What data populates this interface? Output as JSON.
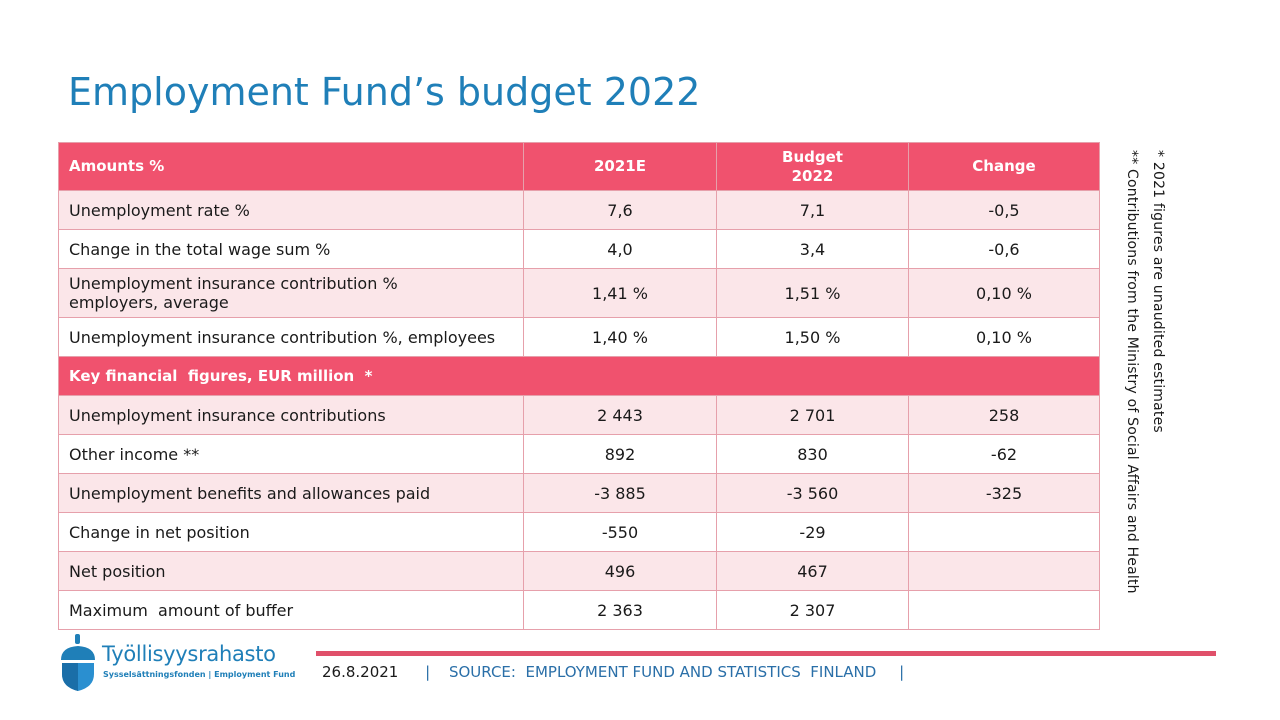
{
  "title": "Employment Fund’s budget 2022",
  "table": {
    "header": {
      "label": "Amounts %",
      "col1": "2021E",
      "col2_line1": "Budget",
      "col2_line2": "2022",
      "col3": "Change"
    },
    "rows_amounts": [
      {
        "label": "Unemployment rate %",
        "v2021": "7,6",
        "budget": "7,1",
        "change": "-0,5"
      },
      {
        "label": "Change in the total wage sum %",
        "v2021": "4,0",
        "budget": "3,4",
        "change": "-0,6"
      },
      {
        "label_line1": "Unemployment insurance contribution %",
        "label_line2": "employers, average",
        "v2021": "1,41 %",
        "budget": "1,51 %",
        "change": "0,10 %"
      },
      {
        "label": "Unemployment insurance contribution %, employees",
        "v2021": "1,40 %",
        "budget": "1,50 %",
        "change": "0,10 %"
      }
    ],
    "section_label": "Key financial  figures, EUR million  *",
    "rows_key": [
      {
        "label": "Unemployment insurance contributions",
        "v2021": "2 443",
        "budget": "2 701",
        "change": "258"
      },
      {
        "label": "Other income **",
        "v2021": "892",
        "budget": "830",
        "change": "-62"
      },
      {
        "label": "Unemployment benefits and allowances paid",
        "v2021": "-3 885",
        "budget": "-3 560",
        "change": "-325"
      },
      {
        "label": "Change in net position",
        "v2021": "-550",
        "budget": "-29",
        "change": ""
      },
      {
        "label": "Net position",
        "v2021": "496",
        "budget": "467",
        "change": ""
      },
      {
        "label": "Maximum  amount of buffer",
        "v2021": "2 363",
        "budget": "2 307",
        "change": ""
      }
    ]
  },
  "notes": {
    "note1": "* 2021 figures are unaudited estimates",
    "note2": "** Contributions from the Ministry of Social Affairs and Health"
  },
  "logo": {
    "name": "Työllisyysrahasto",
    "subtitle": "Sysselsättningsfonden | Employment Fund"
  },
  "footer": {
    "date": "26.8.2021",
    "separator": "|",
    "source": "SOURCE:  EMPLOYMENT FUND AND STATISTICS  FINLAND"
  },
  "colors": {
    "accent_pink": "#f0526e",
    "row_tint": "#fbe6e9",
    "title_blue": "#1f7fb8"
  }
}
